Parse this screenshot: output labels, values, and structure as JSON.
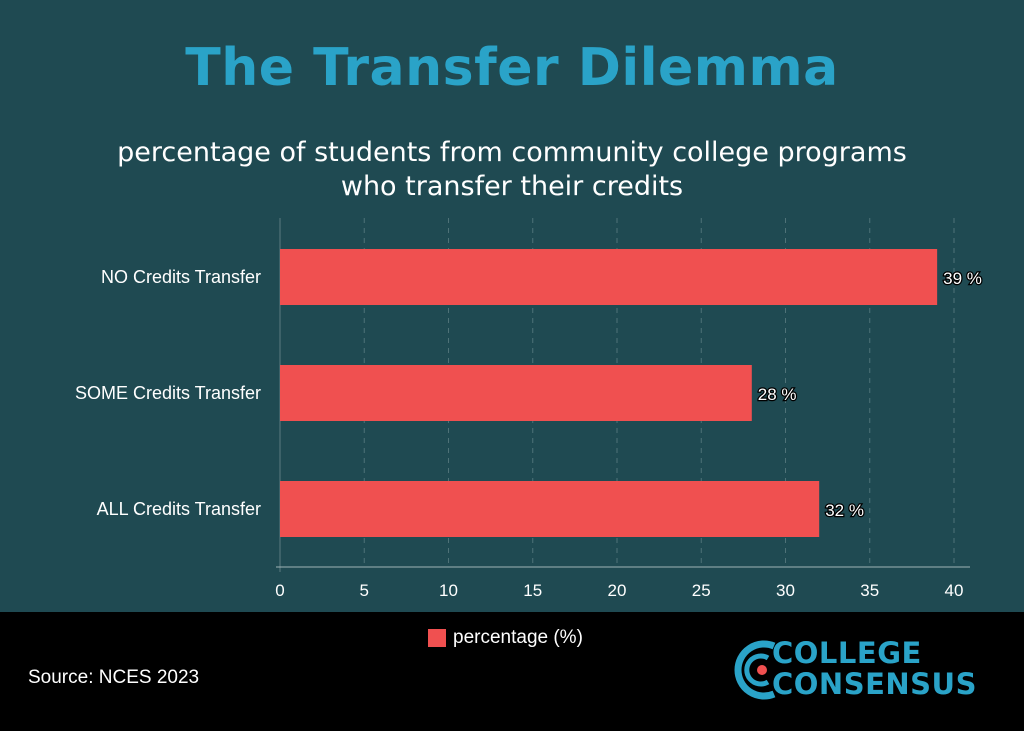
{
  "title": "The Transfer Dilemma",
  "subtitle": {
    "line1": "percentage of students from community college programs",
    "line2": "who transfer their credits"
  },
  "colors": {
    "background": "#1f4a52",
    "footer": "#000000",
    "bar": "#f05050",
    "title": "#2aa3c8",
    "text": "#ffffff"
  },
  "chart_data": {
    "type": "bar",
    "orientation": "horizontal",
    "categories": [
      "NO Credits Transfer",
      "SOME Credits Transfer",
      "ALL Credits Transfer"
    ],
    "series": [
      {
        "name": "percentage (%)",
        "values": [
          39,
          28,
          32
        ]
      }
    ],
    "data_labels": [
      "39 %",
      "28 %",
      "32 %"
    ],
    "xlim": [
      0,
      40
    ],
    "xticks": [
      "0",
      "5",
      "10",
      "15",
      "20",
      "25",
      "30",
      "35",
      "40"
    ],
    "grid": "vertical dashed",
    "legend": "bottom"
  },
  "legend": {
    "label": "percentage (%)"
  },
  "source": "Source: NCES 2023",
  "logo": {
    "line1": "COLLEGE",
    "line2": "CONSENSUS"
  }
}
